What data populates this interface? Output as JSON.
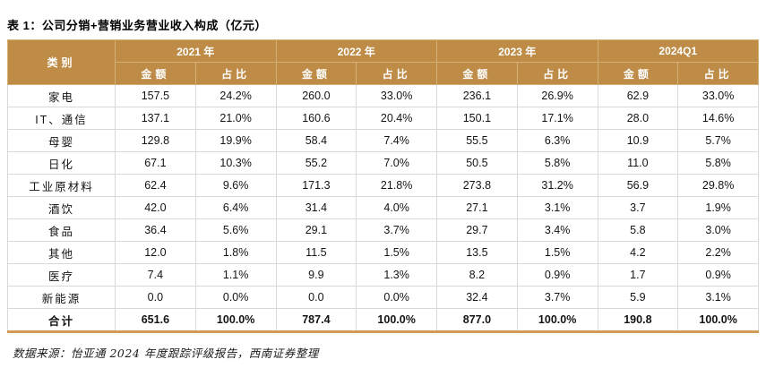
{
  "title": "表 1：公司分销+营销业务营业收入构成（亿元）",
  "source_note": "数据来源：怡亚通 2024 年度跟踪评级报告，西南证券整理",
  "colors": {
    "header_bg": "#BE8C46",
    "header_text": "#FFFFFF",
    "grid_line": "#D9D9D9",
    "bottom_rule": "#D29A55"
  },
  "chart_data": {
    "type": "table",
    "category_header": "类别",
    "year_groups": [
      "2021 年",
      "2022 年",
      "2023 年",
      "2024Q1"
    ],
    "sub_headers": [
      "金额",
      "占比"
    ],
    "rows": [
      {
        "category": "家电",
        "values": [
          "157.5",
          "24.2%",
          "260.0",
          "33.0%",
          "236.1",
          "26.9%",
          "62.9",
          "33.0%"
        ]
      },
      {
        "category": "IT、通信",
        "values": [
          "137.1",
          "21.0%",
          "160.6",
          "20.4%",
          "150.1",
          "17.1%",
          "28.0",
          "14.6%"
        ]
      },
      {
        "category": "母婴",
        "values": [
          "129.8",
          "19.9%",
          "58.4",
          "7.4%",
          "55.5",
          "6.3%",
          "10.9",
          "5.7%"
        ]
      },
      {
        "category": "日化",
        "values": [
          "67.1",
          "10.3%",
          "55.2",
          "7.0%",
          "50.5",
          "5.8%",
          "11.0",
          "5.8%"
        ]
      },
      {
        "category": "工业原材料",
        "values": [
          "62.4",
          "9.6%",
          "171.3",
          "21.8%",
          "273.8",
          "31.2%",
          "56.9",
          "29.8%"
        ]
      },
      {
        "category": "酒饮",
        "values": [
          "42.0",
          "6.4%",
          "31.4",
          "4.0%",
          "27.1",
          "3.1%",
          "3.7",
          "1.9%"
        ]
      },
      {
        "category": "食品",
        "values": [
          "36.4",
          "5.6%",
          "29.1",
          "3.7%",
          "29.7",
          "3.4%",
          "5.8",
          "3.0%"
        ]
      },
      {
        "category": "其他",
        "values": [
          "12.0",
          "1.8%",
          "11.5",
          "1.5%",
          "13.5",
          "1.5%",
          "4.2",
          "2.2%"
        ]
      },
      {
        "category": "医疗",
        "values": [
          "7.4",
          "1.1%",
          "9.9",
          "1.3%",
          "8.2",
          "0.9%",
          "1.7",
          "0.9%"
        ]
      },
      {
        "category": "新能源",
        "values": [
          "0.0",
          "0.0%",
          "0.0",
          "0.0%",
          "32.4",
          "3.7%",
          "5.9",
          "3.1%"
        ]
      },
      {
        "category": "合计",
        "values": [
          "651.6",
          "100.0%",
          "787.4",
          "100.0%",
          "877.0",
          "100.0%",
          "190.8",
          "100.0%"
        ],
        "total": true
      }
    ]
  }
}
